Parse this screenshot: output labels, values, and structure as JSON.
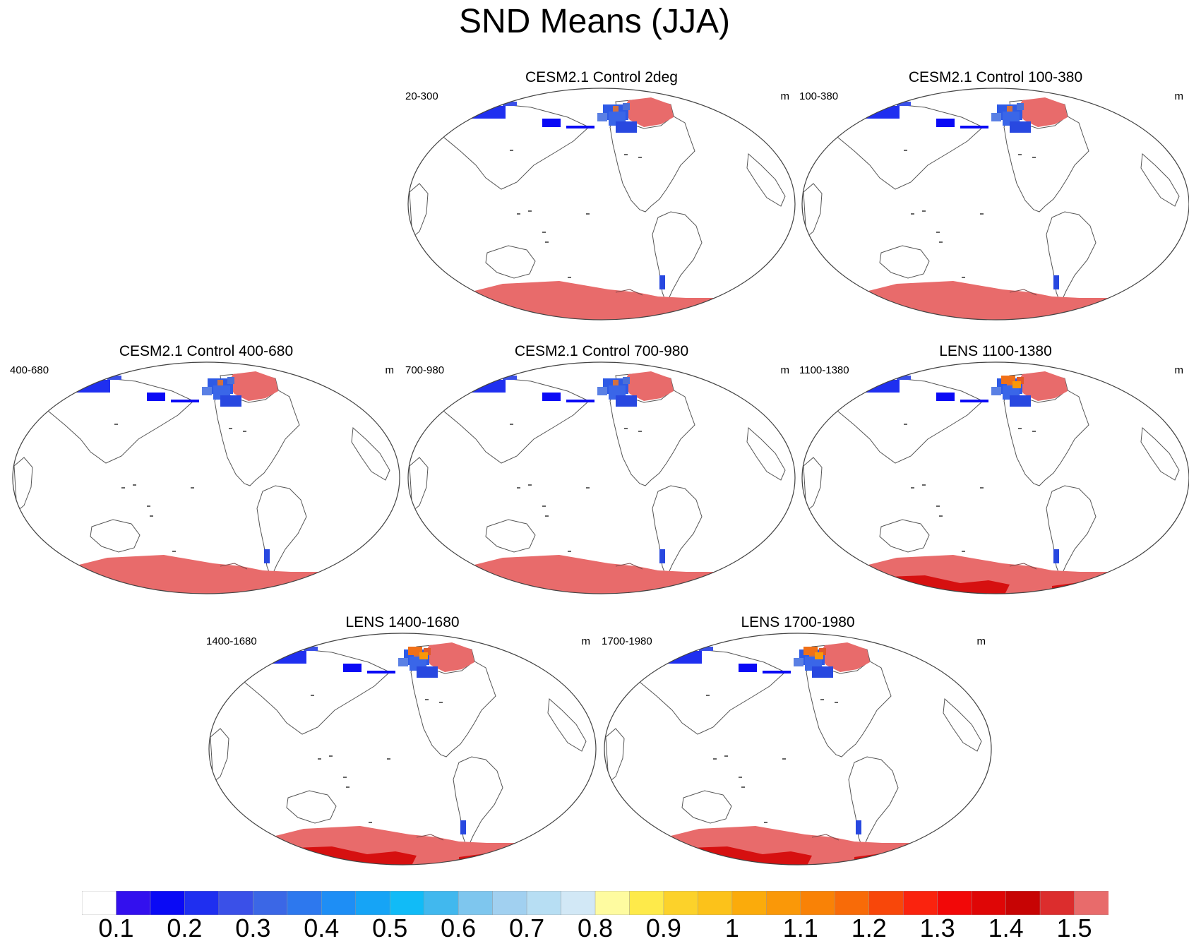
{
  "title": "SND Means (JJA)",
  "panels": [
    {
      "title": "CESM2.1 Control 2deg",
      "left": "20-300",
      "right": "m",
      "lens": false
    },
    {
      "title": "CESM2.1 Control 100-380",
      "left": "100-380",
      "right": "m",
      "lens": false
    },
    {
      "title": "CESM2.1 Control 400-680",
      "left": "400-680",
      "right": "m",
      "lens": false
    },
    {
      "title": "CESM2.1 Control 700-980",
      "left": "700-980",
      "right": "m",
      "lens": false
    },
    {
      "title": "LENS 1100-1380",
      "left": "1100-1380",
      "right": "m",
      "lens": true
    },
    {
      "title": "LENS 1400-1680",
      "left": "1400-1680",
      "right": "m",
      "lens": true
    },
    {
      "title": "LENS 1700-1980",
      "left": "1700-1980",
      "right": "m",
      "lens": true
    }
  ],
  "colorbar": {
    "labels": [
      "0.1",
      "0.2",
      "0.3",
      "0.4",
      "0.5",
      "0.6",
      "0.7",
      "0.8",
      "0.9",
      "1",
      "1.1",
      "1.2",
      "1.3",
      "1.4",
      "1.5"
    ],
    "colors": [
      "#ffffff",
      "#3310ee",
      "#0a0af5",
      "#1f2ff0",
      "#3a50e8",
      "#3b67e6",
      "#2d78ee",
      "#1e8ef5",
      "#16a4f6",
      "#11bbf7",
      "#41b8ee",
      "#7ec6ee",
      "#a1d0f0",
      "#b7def3",
      "#d2e8f6",
      "#fefba0",
      "#feea4a",
      "#fcd22a",
      "#fcc21a",
      "#fbab0b",
      "#fa9808",
      "#f98206",
      "#f86b08",
      "#f8470a",
      "#fa230e",
      "#f20808",
      "#df0606",
      "#c70404",
      "#dc2d2d",
      "#e86b6b"
    ]
  }
}
